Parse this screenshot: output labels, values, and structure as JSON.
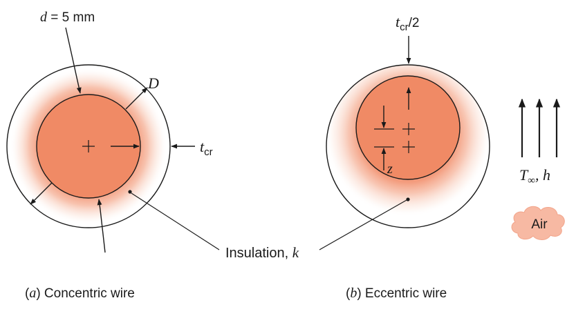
{
  "panel_a": {
    "d_var": "d",
    "d_rest": " = 5 mm",
    "D_label": "D",
    "tcr_base": "t",
    "tcr_sub": "cr",
    "caption_paren_open": "(",
    "caption_letter": "a",
    "caption_paren_close": ")",
    "caption_text": " Concentric wire"
  },
  "panel_b": {
    "tcr_base": "t",
    "tcr_sub": "cr",
    "tcr_suffix": "/2",
    "z_label": "z",
    "caption_paren_open": "(",
    "caption_letter": "b",
    "caption_paren_close": ")",
    "caption_text": " Eccentric wire"
  },
  "flow": {
    "T_base": "T",
    "T_sub": "∞",
    "rest": ", h"
  },
  "air_label": "Air",
  "insulation": {
    "text": "Insulation, ",
    "k": "k"
  },
  "colors": {
    "wire_fill": "#F08A65",
    "insulation_glow": "#F39B7C",
    "stroke": "#1a1a1a",
    "air_cloud": "#F7B9A3"
  }
}
